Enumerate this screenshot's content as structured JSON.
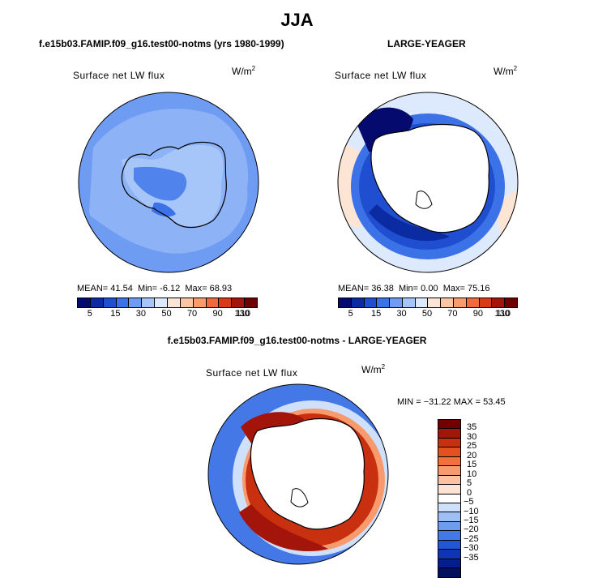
{
  "title": "JJA",
  "panels": [
    {
      "title": "f.e15b03.FAMIP.f09_g16.test00-notms (yrs 1980-1999)",
      "field": "Surface net LW flux",
      "units_base": "W/m",
      "units_exp": "2",
      "stats": {
        "mean_label": "MEAN=",
        "mean": "41.54",
        "min_label": "Min=",
        "min": "-6.12",
        "max_label": "Max=",
        "max": "68.93"
      }
    },
    {
      "title": "LARGE-YEAGER",
      "field": "Surface net LW flux",
      "units_base": "W/m",
      "units_exp": "2",
      "stats": {
        "mean_label": "MEAN=",
        "mean": "36.38",
        "min_label": "Min=",
        "min": "0.00",
        "max_label": "Max=",
        "max": "75.16"
      }
    },
    {
      "title": "f.e15b03.FAMIP.f09_g16.test00-notms - LARGE-YEAGER",
      "field": "Surface net LW flux",
      "units_base": "W/m",
      "units_exp": "2",
      "stats_text": "MIN = −31.22 MAX =  53.45"
    }
  ],
  "colorbar_top": {
    "colors": [
      "#050a6e",
      "#0b2ba3",
      "#1f4fd0",
      "#3c72e8",
      "#6f9cf3",
      "#a6c5f8",
      "#dde9fc",
      "#fde5d5",
      "#fcc5a3",
      "#f99b6b",
      "#ef6a3c",
      "#d83a18",
      "#a3140a",
      "#6e0000"
    ],
    "labels": [
      "5",
      "15",
      "30",
      "50",
      "70",
      "90",
      "110",
      "130"
    ]
  },
  "colorbar_diff": {
    "colors": [
      "#730000",
      "#a3140a",
      "#c9300f",
      "#e2511f",
      "#f2713b",
      "#f79a6d",
      "#fbc1a0",
      "#fde3d3",
      "#ffffff",
      "#cfe0fb",
      "#9dbff6",
      "#6c9bf0",
      "#4478e6",
      "#2156d6",
      "#0d35b5",
      "#071d8c",
      "#03105e"
    ],
    "labels": [
      "35",
      "30",
      "25",
      "20",
      "15",
      "10",
      "5",
      "0",
      "−5",
      "−10",
      "−15",
      "−20",
      "−25",
      "−30",
      "−35"
    ]
  }
}
